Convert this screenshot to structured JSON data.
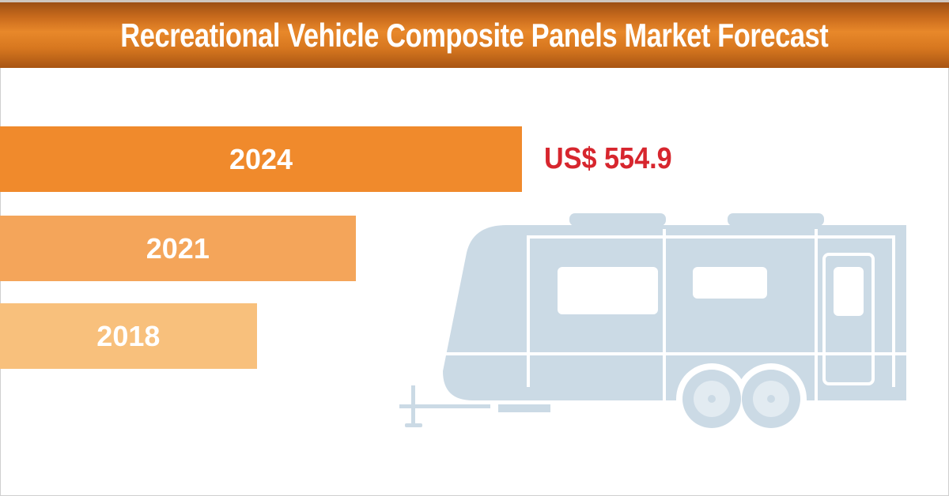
{
  "chart_data": {
    "type": "bar",
    "orientation": "horizontal",
    "title": "Recreational Vehicle Composite Panels Market Forecast",
    "categories": [
      "2024",
      "2021",
      "2018"
    ],
    "values": [
      554.9,
      378,
      273
    ],
    "value_labels": [
      "US$ 554.9"
    ],
    "colors": [
      "#F08A2C",
      "#F4A55A",
      "#F8C07C"
    ],
    "label_color": "#D7262E",
    "xlim": [
      0,
      1000
    ]
  },
  "illustration": {
    "icon": "camper-trailer-icon",
    "color": "#CBDAE5"
  }
}
